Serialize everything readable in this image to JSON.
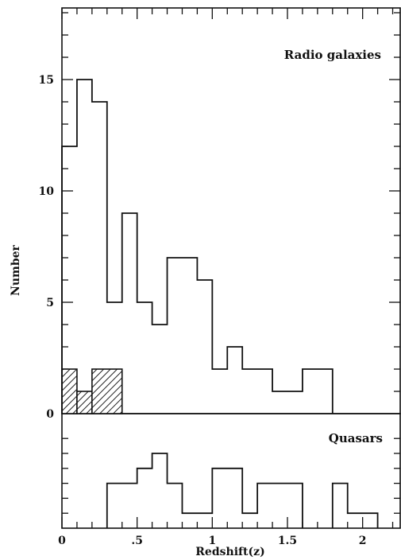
{
  "chart_data": [
    {
      "type": "bar",
      "panel": "top",
      "label": "Radio galaxies",
      "xlabel": "Redshift(z)",
      "ylabel": "Number",
      "xlim": [
        0,
        2.25
      ],
      "ylim": [
        0,
        18
      ],
      "y_ticks": [
        0,
        5,
        10,
        15
      ],
      "y_tick_labels": [
        "0",
        "5",
        "10",
        "15"
      ],
      "bin_width": 0.1,
      "bins": [
        {
          "x0": 0.0,
          "x1": 0.1,
          "count": 12
        },
        {
          "x0": 0.1,
          "x1": 0.2,
          "count": 15
        },
        {
          "x0": 0.2,
          "x1": 0.3,
          "count": 14
        },
        {
          "x0": 0.3,
          "x1": 0.4,
          "count": 5
        },
        {
          "x0": 0.4,
          "x1": 0.5,
          "count": 9
        },
        {
          "x0": 0.5,
          "x1": 0.6,
          "count": 5
        },
        {
          "x0": 0.6,
          "x1": 0.7,
          "count": 4
        },
        {
          "x0": 0.7,
          "x1": 0.9,
          "count": 7
        },
        {
          "x0": 0.9,
          "x1": 1.0,
          "count": 6
        },
        {
          "x0": 1.0,
          "x1": 1.1,
          "count": 2
        },
        {
          "x0": 1.1,
          "x1": 1.2,
          "count": 3
        },
        {
          "x0": 1.2,
          "x1": 1.4,
          "count": 2
        },
        {
          "x0": 1.4,
          "x1": 1.6,
          "count": 1
        },
        {
          "x0": 1.6,
          "x1": 1.8,
          "count": 2
        }
      ],
      "hatched_bins": [
        {
          "x0": 0.0,
          "x1": 0.1,
          "count": 2
        },
        {
          "x0": 0.1,
          "x1": 0.2,
          "count": 1
        },
        {
          "x0": 0.2,
          "x1": 0.4,
          "count": 2
        }
      ]
    },
    {
      "type": "bar",
      "panel": "bottom",
      "label": "Quasars",
      "xlabel": "Redshift(z)",
      "xlim": [
        0,
        2.25
      ],
      "ylim": [
        0,
        6
      ],
      "x_ticks": [
        0,
        0.5,
        1,
        1.5,
        2
      ],
      "x_tick_labels": [
        "0",
        ".5",
        "1",
        "1.5",
        "2"
      ],
      "bin_width": 0.1,
      "bins": [
        {
          "x0": 0.3,
          "x1": 0.5,
          "count": 3
        },
        {
          "x0": 0.5,
          "x1": 0.6,
          "count": 4
        },
        {
          "x0": 0.6,
          "x1": 0.7,
          "count": 5
        },
        {
          "x0": 0.7,
          "x1": 0.8,
          "count": 3
        },
        {
          "x0": 0.8,
          "x1": 1.0,
          "count": 1
        },
        {
          "x0": 1.0,
          "x1": 1.2,
          "count": 4
        },
        {
          "x0": 1.2,
          "x1": 1.3,
          "count": 1
        },
        {
          "x0": 1.3,
          "x1": 1.6,
          "count": 3
        },
        {
          "x0": 1.8,
          "x1": 1.9,
          "count": 3
        },
        {
          "x0": 1.9,
          "x1": 2.1,
          "count": 1
        }
      ]
    }
  ]
}
